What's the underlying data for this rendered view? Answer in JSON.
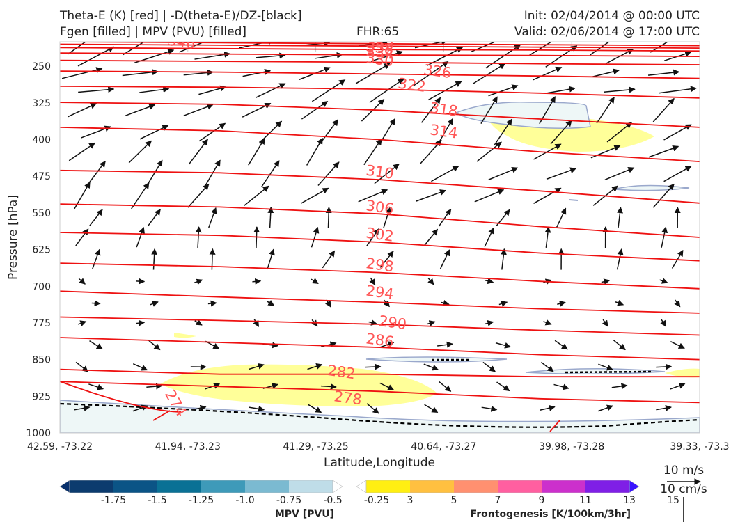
{
  "header": {
    "title_line1": "Theta-E (K) [red] | -D(theta-E)/DZ-[black]",
    "title_line2": "Fgen [filled] | MPV (PVU) [filled]",
    "fhr": "FHR:65",
    "init": "Init: 02/04/2014 @ 00:00 UTC",
    "valid": "Valid: 02/06/2014 @ 17:00 UTC"
  },
  "chart_data": {
    "type": "cross-section",
    "xlabel": "Latitude,Longitude",
    "ylabel": "Pressure [hPa]",
    "x_ticks": [
      "42.59, -73.22",
      "41.94, -73.23",
      "41.29, -73.25",
      "40.64, -73.27",
      "39.98, -73.28",
      "39.33, -73.3"
    ],
    "y_ticks": [
      250,
      325,
      400,
      475,
      550,
      625,
      700,
      775,
      850,
      925,
      1000
    ],
    "ylim": [
      1000,
      200
    ],
    "theta_e_contours": [
      {
        "label": "346",
        "p": [
          200,
          202,
          204,
          206,
          208
        ]
      },
      {
        "label": "342",
        "p": [
          205,
          207,
          209,
          211,
          213
        ]
      },
      {
        "label": "338",
        "p": [
          212,
          214,
          216,
          217,
          219
        ]
      },
      {
        "label": "334",
        "p": [
          223,
          225,
          227,
          228,
          230
        ]
      },
      {
        "label": "330",
        "p": [
          238,
          240,
          242,
          245,
          247
        ]
      },
      {
        "label": "326",
        "p": [
          260,
          262,
          266,
          270,
          275
        ]
      },
      {
        "label": "322",
        "p": [
          291,
          293,
          297,
          305,
          315
        ]
      },
      {
        "label": "318",
        "p": [
          324,
          328,
          340,
          358,
          375
        ]
      },
      {
        "label": "314",
        "p": [
          375,
          382,
          400,
          425,
          445
        ]
      },
      {
        "label": "310",
        "p": [
          463,
          468,
          482,
          505,
          530
        ]
      },
      {
        "label": "306",
        "p": [
          532,
          538,
          552,
          578,
          600
        ]
      },
      {
        "label": "302",
        "p": [
          590,
          596,
          610,
          632,
          648
        ]
      },
      {
        "label": "298",
        "p": [
          653,
          660,
          672,
          690,
          705
        ]
      },
      {
        "label": "294",
        "p": [
          710,
          722,
          733,
          746,
          755
        ]
      },
      {
        "label": "290",
        "p": [
          763,
          770,
          778,
          790,
          800
        ]
      },
      {
        "label": "286",
        "p": [
          805,
          815,
          825,
          840,
          850
        ]
      },
      {
        "label": "282",
        "p": [
          870,
          880,
          880,
          885,
          885
        ]
      },
      {
        "label": "278",
        "p": [
          895,
          905,
          915,
          930,
          938
        ]
      },
      {
        "label": "274",
        "p": [
          920,
          950,
          990
        ]
      }
    ],
    "contour_labels": [
      {
        "label": "346",
        "x": 0.19,
        "p": 202
      },
      {
        "label": "342",
        "x": 0.5,
        "p": 207
      },
      {
        "label": "338",
        "x": 0.5,
        "p": 214
      },
      {
        "label": "334",
        "x": 0.5,
        "p": 223
      },
      {
        "label": "330",
        "x": 0.5,
        "p": 238
      },
      {
        "label": "326",
        "x": 0.59,
        "p": 262
      },
      {
        "label": "322",
        "x": 0.55,
        "p": 290
      },
      {
        "label": "318",
        "x": 0.6,
        "p": 340
      },
      {
        "label": "314",
        "x": 0.6,
        "p": 385
      },
      {
        "label": "310",
        "x": 0.5,
        "p": 468
      },
      {
        "label": "306",
        "x": 0.5,
        "p": 540
      },
      {
        "label": "302",
        "x": 0.5,
        "p": 596
      },
      {
        "label": "298",
        "x": 0.5,
        "p": 658
      },
      {
        "label": "294",
        "x": 0.5,
        "p": 714
      },
      {
        "label": "290",
        "x": 0.52,
        "p": 776
      },
      {
        "label": "286",
        "x": 0.5,
        "p": 812
      },
      {
        "label": "282",
        "x": 0.44,
        "p": 877
      },
      {
        "label": "278",
        "x": 0.45,
        "p": 930
      },
      {
        "label": "274",
        "x": 0.18,
        "p": 940
      }
    ],
    "mpv_colorbar": {
      "title": "MPV [PVU]",
      "ticks": [
        "-1.75",
        "-1.5",
        "-1.25",
        "-1.0",
        "-0.75",
        "-0.5",
        "-0.25"
      ],
      "colors": [
        "#08306b",
        "#0c3b6e",
        "#0b5486",
        "#0a7195",
        "#3e9ab9",
        "#7bbad1",
        "#bfdde8",
        "#ffffff"
      ]
    },
    "fgen_colorbar": {
      "title": "Frontogenesis [K/100km/3hr]",
      "ticks": [
        "3",
        "5",
        "7",
        "9",
        "11",
        "13",
        "15"
      ],
      "colors": [
        "#ffffff",
        "#ffef12",
        "#ffc040",
        "#ff9070",
        "#ff5fa0",
        "#cc30cc",
        "#7f1fe6",
        "#3a14ff"
      ]
    },
    "wind_key": {
      "label_top": "10 m/s",
      "label_bottom": "10 cm/s"
    }
  }
}
